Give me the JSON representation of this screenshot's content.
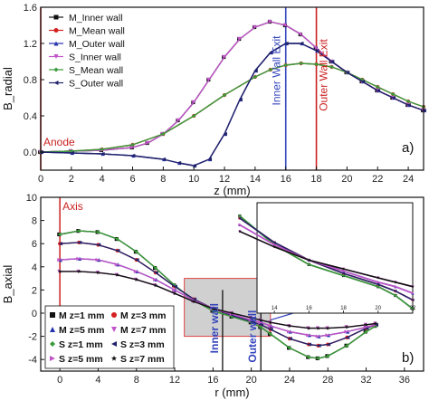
{
  "colors": {
    "black": "#111111",
    "red": "#d42020",
    "blue": "#2233aa",
    "violet": "#c054c8",
    "green": "#3a9a3a",
    "navy": "#22226a",
    "inner_wall_line": "#3344bb",
    "outer_wall_line": "#cc2222",
    "zoom_box": "#c8c8c8"
  },
  "chart_data": [
    {
      "type": "line",
      "panel_label": "a)",
      "xlabel": "z (mm)",
      "ylabel": "B_radial",
      "xlim": [
        0,
        25
      ],
      "ylim": [
        -0.2,
        1.6
      ],
      "x_ticks": [
        "0",
        "2",
        "4",
        "6",
        "8",
        "10",
        "12",
        "14",
        "16",
        "18",
        "20",
        "22",
        "24"
      ],
      "y_ticks": [
        "0.0",
        "0.4",
        "0.8",
        "1.2",
        "1.6"
      ],
      "grid": false,
      "legend_position": "top-left",
      "vlines": [
        {
          "x": 0,
          "label": "Anode",
          "color": "red"
        },
        {
          "x": 16,
          "label": "Inner Wall Exit",
          "color": "blue"
        },
        {
          "x": 18,
          "label": "Outer Wall Exit",
          "color": "red"
        }
      ],
      "series": [
        {
          "name": "M_Inner wall",
          "marker": "square",
          "color": "black",
          "x": [
            0,
            2,
            4,
            6,
            7,
            8,
            9,
            10,
            11,
            12,
            13,
            14,
            15,
            16,
            17,
            18,
            19,
            20,
            21,
            22,
            23,
            24,
            25
          ],
          "y": [
            0.0,
            0.01,
            0.02,
            0.05,
            0.1,
            0.2,
            0.35,
            0.55,
            0.8,
            1.05,
            1.25,
            1.38,
            1.44,
            1.4,
            1.3,
            1.15,
            1.0,
            0.88,
            0.78,
            0.68,
            0.6,
            0.52,
            0.46
          ]
        },
        {
          "name": "M_Mean wall",
          "marker": "circle",
          "color": "red",
          "x": [
            0,
            2,
            4,
            6,
            8,
            10,
            12,
            14,
            15,
            16,
            17,
            18,
            19,
            20,
            21,
            22,
            23,
            24,
            25
          ],
          "y": [
            0.0,
            0.01,
            0.03,
            0.08,
            0.2,
            0.4,
            0.63,
            0.83,
            0.91,
            0.96,
            0.98,
            0.97,
            0.94,
            0.88,
            0.8,
            0.72,
            0.64,
            0.56,
            0.5
          ]
        },
        {
          "name": "M_Outer wall",
          "marker": "triangle-up",
          "color": "blue",
          "x": [
            0,
            2,
            4,
            6,
            8,
            9,
            10,
            11,
            12,
            13,
            14,
            15,
            16,
            17,
            18,
            19,
            20,
            21,
            22,
            23,
            24,
            25
          ],
          "y": [
            0.0,
            -0.01,
            -0.02,
            -0.04,
            -0.08,
            -0.12,
            -0.15,
            -0.08,
            0.2,
            0.58,
            0.9,
            1.1,
            1.2,
            1.2,
            1.12,
            1.0,
            0.88,
            0.78,
            0.68,
            0.6,
            0.52,
            0.46
          ]
        },
        {
          "name": "S_Inner wall",
          "marker": "triangle-down",
          "color": "violet",
          "x": [
            0,
            2,
            4,
            6,
            7,
            8,
            9,
            10,
            11,
            12,
            13,
            14,
            15,
            16,
            17,
            18,
            19,
            20,
            21,
            22,
            23,
            24,
            25
          ],
          "y": [
            0.0,
            0.01,
            0.02,
            0.05,
            0.1,
            0.2,
            0.35,
            0.55,
            0.8,
            1.05,
            1.25,
            1.38,
            1.44,
            1.4,
            1.3,
            1.15,
            1.0,
            0.88,
            0.78,
            0.68,
            0.6,
            0.52,
            0.46
          ]
        },
        {
          "name": "S_Mean wall",
          "marker": "diamond",
          "color": "green",
          "x": [
            0,
            2,
            4,
            6,
            8,
            10,
            12,
            14,
            15,
            16,
            17,
            18,
            19,
            20,
            21,
            22,
            23,
            24,
            25
          ],
          "y": [
            0.0,
            0.01,
            0.03,
            0.08,
            0.2,
            0.4,
            0.63,
            0.83,
            0.91,
            0.96,
            0.98,
            0.97,
            0.94,
            0.88,
            0.8,
            0.72,
            0.64,
            0.56,
            0.5
          ]
        },
        {
          "name": "S_Outer wall",
          "marker": "triangle-left",
          "color": "navy",
          "x": [
            0,
            2,
            4,
            6,
            8,
            9,
            10,
            11,
            12,
            13,
            14,
            15,
            16,
            17,
            18,
            19,
            20,
            21,
            22,
            23,
            24,
            25
          ],
          "y": [
            0.0,
            -0.01,
            -0.02,
            -0.04,
            -0.08,
            -0.12,
            -0.15,
            -0.08,
            0.2,
            0.58,
            0.9,
            1.1,
            1.2,
            1.2,
            1.12,
            1.0,
            0.88,
            0.78,
            0.68,
            0.6,
            0.52,
            0.46
          ]
        }
      ]
    },
    {
      "type": "line",
      "panel_label": "b)",
      "xlabel": "r (mm)",
      "ylabel": "B_axial",
      "xlim": [
        -2,
        38
      ],
      "ylim": [
        -5,
        10
      ],
      "x_ticks": [
        "0",
        "4",
        "8",
        "12",
        "16",
        "20",
        "24",
        "28",
        "32",
        "36"
      ],
      "y_ticks": [
        "-4",
        "-2",
        "0",
        "2",
        "4",
        "6",
        "8",
        "10"
      ],
      "grid": false,
      "legend_position": "bottom-left",
      "vlines": [
        {
          "x": 0,
          "label": "Axis",
          "color": "red"
        },
        {
          "x": 17,
          "label": "Inner wall",
          "color": "navy"
        },
        {
          "x": 21,
          "label": "Outer wall",
          "color": "navy"
        }
      ],
      "zoom_box": {
        "x": [
          13,
          22
        ],
        "y": [
          -2,
          3
        ]
      },
      "series": [
        {
          "name": "M z=1 mm",
          "marker": "square",
          "color": "black",
          "x": [
            0,
            2,
            4,
            6,
            8,
            10,
            12,
            14,
            16,
            18,
            20,
            21,
            22,
            24,
            26,
            27,
            28,
            30,
            32,
            33
          ],
          "y": [
            6.8,
            7.1,
            7.0,
            6.4,
            5.3,
            3.9,
            2.4,
            1.1,
            0.2,
            -0.3,
            -0.8,
            -1.2,
            -1.8,
            -3.0,
            -3.8,
            -3.9,
            -3.7,
            -2.8,
            -1.6,
            -1.1
          ]
        },
        {
          "name": "M z=3 mm",
          "marker": "circle",
          "color": "red",
          "x": [
            0,
            2,
            4,
            6,
            8,
            10,
            12,
            14,
            16,
            18,
            20,
            21,
            22,
            24,
            26,
            27,
            28,
            30,
            32,
            33
          ],
          "y": [
            6.0,
            6.1,
            5.9,
            5.4,
            4.6,
            3.5,
            2.3,
            1.2,
            0.4,
            -0.2,
            -0.7,
            -1.0,
            -1.4,
            -2.2,
            -2.7,
            -2.8,
            -2.7,
            -2.1,
            -1.3,
            -1.0
          ]
        },
        {
          "name": "M z=5 mm",
          "marker": "triangle-up",
          "color": "blue",
          "x": [
            0,
            2,
            4,
            6,
            8,
            10,
            12,
            14,
            16,
            18,
            20,
            21,
            22,
            24,
            26,
            27,
            28,
            30,
            32,
            33
          ],
          "y": [
            4.6,
            4.7,
            4.6,
            4.2,
            3.6,
            2.9,
            2.0,
            1.1,
            0.4,
            -0.1,
            -0.6,
            -0.8,
            -1.1,
            -1.6,
            -1.9,
            -2.0,
            -1.9,
            -1.6,
            -1.2,
            -1.0
          ]
        },
        {
          "name": "M z=7 mm",
          "marker": "triangle-down",
          "color": "violet",
          "x": [
            0,
            2,
            4,
            6,
            8,
            10,
            12,
            14,
            16,
            18,
            20,
            21,
            22,
            24,
            26,
            27,
            28,
            30,
            32,
            33
          ],
          "y": [
            3.6,
            3.6,
            3.5,
            3.3,
            2.9,
            2.4,
            1.7,
            1.0,
            0.4,
            0.0,
            -0.4,
            -0.6,
            -0.8,
            -1.1,
            -1.3,
            -1.3,
            -1.3,
            -1.2,
            -1.0,
            -0.9
          ]
        },
        {
          "name": "S z=1 mm",
          "marker": "diamond",
          "color": "green",
          "x": [
            0,
            2,
            4,
            6,
            8,
            10,
            12,
            14,
            16,
            18,
            20,
            21,
            22,
            24,
            26,
            27,
            28,
            30,
            32,
            33
          ],
          "y": [
            6.8,
            7.1,
            7.0,
            6.4,
            5.3,
            3.9,
            2.4,
            1.1,
            0.2,
            -0.3,
            -0.8,
            -1.2,
            -1.8,
            -3.0,
            -3.8,
            -3.9,
            -3.7,
            -2.8,
            -1.6,
            -1.1
          ]
        },
        {
          "name": "S z=3 mm",
          "marker": "triangle-left",
          "color": "navy",
          "x": [
            0,
            2,
            4,
            6,
            8,
            10,
            12,
            14,
            16,
            18,
            20,
            21,
            22,
            24,
            26,
            27,
            28,
            30,
            32,
            33
          ],
          "y": [
            6.0,
            6.1,
            5.9,
            5.4,
            4.6,
            3.5,
            2.3,
            1.2,
            0.4,
            -0.2,
            -0.7,
            -1.0,
            -1.4,
            -2.2,
            -2.7,
            -2.8,
            -2.7,
            -2.1,
            -1.3,
            -1.0
          ]
        },
        {
          "name": "S z=5 mm",
          "marker": "triangle-right",
          "color": "violet",
          "x": [
            0,
            2,
            4,
            6,
            8,
            10,
            12,
            14,
            16,
            18,
            20,
            21,
            22,
            24,
            26,
            27,
            28,
            30,
            32,
            33
          ],
          "y": [
            4.6,
            4.7,
            4.6,
            4.2,
            3.6,
            2.9,
            2.0,
            1.1,
            0.4,
            -0.1,
            -0.6,
            -0.8,
            -1.1,
            -1.6,
            -1.9,
            -2.0,
            -1.9,
            -1.6,
            -1.2,
            -1.0
          ]
        },
        {
          "name": "S z=7 mm",
          "marker": "star",
          "color": "black",
          "x": [
            0,
            2,
            4,
            6,
            8,
            10,
            12,
            14,
            16,
            18,
            20,
            21,
            22,
            24,
            26,
            27,
            28,
            30,
            32,
            33
          ],
          "y": [
            3.6,
            3.6,
            3.5,
            3.3,
            2.9,
            2.4,
            1.7,
            1.0,
            0.4,
            0.0,
            -0.4,
            -0.6,
            -0.8,
            -1.1,
            -1.3,
            -1.3,
            -1.3,
            -1.2,
            -1.0,
            -0.9
          ]
        }
      ],
      "inset": {
        "xlim": [
          13,
          22
        ],
        "ylim": [
          -2,
          3
        ],
        "x_ticks": [
          "14",
          "16",
          "18",
          "20",
          "22"
        ]
      }
    }
  ]
}
